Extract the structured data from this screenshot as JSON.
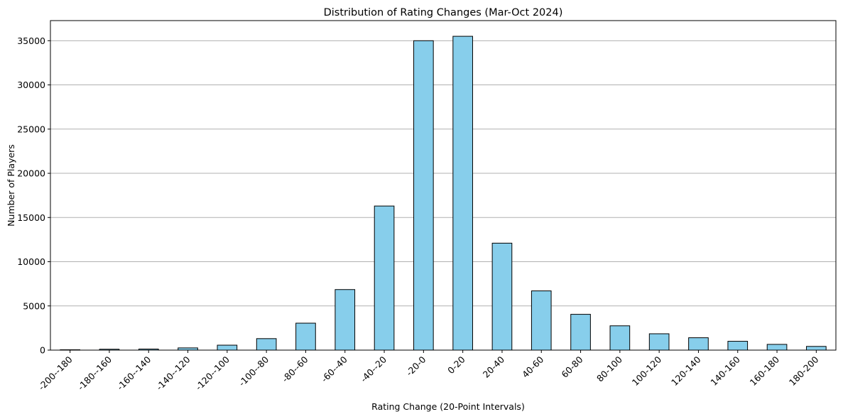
{
  "chart_data": {
    "type": "bar",
    "title": "Distribution of Rating Changes (Mar-Oct 2024)",
    "xlabel": "Rating Change (20-Point Intervals)",
    "ylabel": "Number of Players",
    "categories": [
      "-200--180",
      "-180--160",
      "-160--140",
      "-140--120",
      "-120--100",
      "-100--80",
      "-80--60",
      "-60--40",
      "-40--20",
      "-20-0",
      "0-20",
      "20-40",
      "40-60",
      "60-80",
      "80-100",
      "100-120",
      "120-140",
      "140-160",
      "160-180",
      "180-200"
    ],
    "values": [
      40,
      100,
      120,
      250,
      560,
      1300,
      3050,
      6850,
      16300,
      35000,
      35500,
      12100,
      6700,
      4050,
      2750,
      1850,
      1400,
      1000,
      650,
      420
    ],
    "yticks": [
      0,
      5000,
      10000,
      15000,
      20000,
      25000,
      30000,
      35000
    ],
    "ylim": [
      0,
      37275
    ],
    "grid": "y",
    "bar_color": "#87ceeb",
    "edge_color": "#000000"
  }
}
